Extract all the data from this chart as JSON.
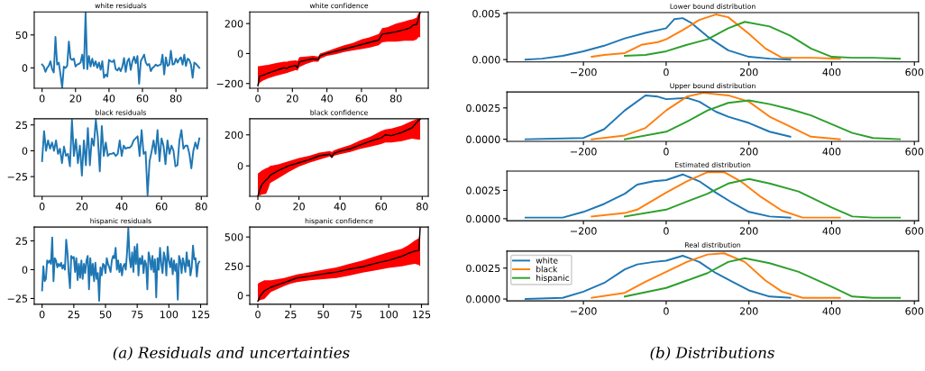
{
  "chart_data": [
    {
      "type": "line",
      "title": "white residuals",
      "annotations": [
        "(a) Residuals and uncertainties"
      ],
      "x": [
        0,
        1,
        2,
        3,
        4,
        5,
        6,
        7,
        8,
        9,
        10,
        11,
        12,
        13,
        14,
        15,
        16,
        17,
        18,
        19,
        20,
        21,
        22,
        23,
        24,
        25,
        26,
        27,
        28,
        29,
        30,
        31,
        32,
        33,
        34,
        35,
        36,
        37,
        38,
        39,
        40,
        41,
        42,
        43,
        44,
        45,
        46,
        47,
        48,
        49,
        50,
        51,
        52,
        53,
        54,
        55,
        56,
        57,
        58,
        59,
        60,
        61,
        62,
        63,
        64,
        65,
        66,
        67,
        68,
        69,
        70,
        71,
        72,
        73,
        74,
        75,
        76,
        77,
        78,
        79,
        80,
        81,
        82,
        83,
        84,
        85,
        86,
        87,
        88,
        89,
        90,
        91,
        92,
        93,
        94
      ],
      "series": [
        {
          "color": "#1f77b4",
          "values": [
            5,
            2,
            -6,
            0,
            3,
            10,
            -2,
            -7,
            47,
            5,
            8,
            -10,
            -30,
            2,
            0,
            3,
            40,
            14,
            12,
            14,
            2,
            5,
            6,
            8,
            20,
            -1,
            84,
            -2,
            18,
            2,
            14,
            3,
            10,
            0,
            8,
            -3,
            10,
            -15,
            -10,
            -13,
            12,
            10,
            9,
            12,
            -2,
            -4,
            0,
            -5,
            2,
            15,
            -6,
            10,
            14,
            -3,
            10,
            17,
            7,
            18,
            -24,
            10,
            15,
            20,
            8,
            4,
            6,
            -5,
            0,
            2,
            5,
            3,
            4,
            5,
            20,
            -10,
            16,
            3,
            5,
            26,
            5,
            6,
            14,
            8,
            13,
            16,
            5,
            20,
            3,
            14,
            12,
            5,
            -15,
            8,
            6,
            3,
            0
          ]
        }
      ],
      "xlim": [
        -4.7,
        98.7
      ],
      "ylim": [
        -31,
        85
      ],
      "xticks": [
        0,
        20,
        40,
        60,
        80
      ],
      "yticks": [
        0,
        50
      ]
    },
    {
      "type": "line",
      "title": "white confidence",
      "series": [
        {
          "color": "#000000",
          "x": [
            0,
            1,
            3,
            6,
            10,
            15,
            17,
            18,
            22,
            23,
            24,
            28,
            32,
            35,
            36,
            40,
            45,
            50,
            55,
            60,
            65,
            70,
            72,
            75,
            80,
            85,
            88,
            90,
            92,
            93,
            94
          ],
          "values": [
            -215,
            -150,
            -145,
            -130,
            -115,
            -95,
            -100,
            -90,
            -80,
            -95,
            -55,
            -45,
            -35,
            -40,
            -15,
            0,
            15,
            30,
            45,
            60,
            75,
            90,
            130,
            135,
            145,
            160,
            170,
            190,
            195,
            230,
            275
          ],
          "lower": [
            -225,
            -195,
            -180,
            -165,
            -150,
            -135,
            -130,
            -125,
            -110,
            -115,
            -90,
            -70,
            -55,
            -55,
            -35,
            -15,
            -5,
            10,
            20,
            30,
            40,
            55,
            75,
            80,
            80,
            85,
            85,
            85,
            95,
            110,
            110
          ],
          "upper": [
            -85,
            -85,
            -80,
            -75,
            -65,
            -55,
            -55,
            -50,
            -45,
            -50,
            -25,
            -20,
            -15,
            -20,
            0,
            15,
            35,
            55,
            70,
            95,
            110,
            130,
            170,
            175,
            200,
            215,
            225,
            230,
            240,
            270,
            275
          ]
        }
      ],
      "xlim": [
        -4.7,
        98.7
      ],
      "ylim": [
        -232,
        278
      ],
      "xticks": [
        0,
        20,
        40,
        60,
        80
      ],
      "yticks": [
        -200,
        0,
        200
      ]
    },
    {
      "type": "line",
      "title": "black residuals",
      "x": [
        0,
        1,
        2,
        3,
        4,
        5,
        6,
        7,
        8,
        9,
        10,
        11,
        12,
        13,
        14,
        15,
        16,
        17,
        18,
        19,
        20,
        21,
        22,
        23,
        24,
        25,
        26,
        27,
        28,
        29,
        30,
        31,
        32,
        33,
        34,
        35,
        36,
        37,
        38,
        39,
        40,
        41,
        42,
        43,
        44,
        45,
        46,
        47,
        48,
        49,
        50,
        51,
        52,
        53,
        54,
        55,
        56,
        57,
        58,
        59,
        60,
        61,
        62,
        63,
        64,
        65,
        66,
        67,
        68,
        69,
        70,
        71,
        72,
        73,
        74,
        75,
        76,
        77,
        78,
        79
      ],
      "series": [
        {
          "color": "#1f77b4",
          "values": [
            -10,
            19,
            0,
            10,
            2,
            8,
            0,
            10,
            -3,
            2,
            -12,
            4,
            -5,
            -3,
            -15,
            30,
            -5,
            11,
            -12,
            5,
            -24,
            10,
            -14,
            22,
            -14,
            12,
            5,
            30,
            13,
            -20,
            24,
            -5,
            8,
            -5,
            -3,
            -3,
            -2,
            -5,
            -3,
            10,
            -5,
            5,
            2,
            3,
            3,
            5,
            10,
            12,
            14,
            -5,
            20,
            -3,
            -1,
            -43,
            -10,
            -1,
            10,
            -3,
            20,
            -10,
            12,
            5,
            -13,
            10,
            -3,
            5,
            0,
            -15,
            -14,
            10,
            20,
            2,
            5,
            5,
            -3,
            -17,
            0,
            8,
            2,
            12
          ]
        }
      ],
      "xlim": [
        -3.95,
        82.95
      ],
      "ylim": [
        -44,
        31
      ],
      "xticks": [
        0,
        20,
        40,
        60,
        80
      ],
      "yticks": [
        -25,
        0,
        25
      ]
    },
    {
      "type": "line",
      "title": "black confidence",
      "series": [
        {
          "color": "#000000",
          "x": [
            0,
            1,
            2,
            4,
            5,
            6,
            10,
            15,
            20,
            25,
            30,
            35,
            36,
            37,
            40,
            45,
            50,
            55,
            60,
            62,
            65,
            70,
            75,
            78,
            79
          ],
          "values": [
            -195,
            -150,
            -120,
            -90,
            -80,
            -60,
            -30,
            0,
            20,
            40,
            65,
            75,
            55,
            80,
            95,
            110,
            135,
            160,
            180,
            200,
            195,
            215,
            245,
            290,
            300
          ],
          "lower": [
            -196,
            -190,
            -185,
            -180,
            -150,
            -110,
            -80,
            -40,
            -5,
            20,
            40,
            60,
            50,
            65,
            75,
            90,
            110,
            125,
            140,
            150,
            150,
            160,
            175,
            170,
            170
          ],
          "upper": [
            -50,
            -40,
            -30,
            -15,
            -10,
            0,
            10,
            30,
            50,
            65,
            85,
            95,
            90,
            100,
            115,
            135,
            165,
            190,
            225,
            235,
            240,
            260,
            290,
            304,
            304
          ]
        }
      ],
      "xlim": [
        -3.95,
        82.95
      ],
      "ylim": [
        -196,
        304
      ],
      "xticks": [
        0,
        20,
        40,
        60,
        80
      ],
      "yticks": [
        0,
        200
      ]
    },
    {
      "type": "line",
      "title": "hispanic residuals",
      "x": [
        0,
        1,
        2,
        3,
        4,
        5,
        6,
        7,
        8,
        9,
        10,
        11,
        12,
        13,
        14,
        15,
        16,
        17,
        18,
        19,
        20,
        21,
        22,
        23,
        24,
        25,
        26,
        27,
        28,
        29,
        30,
        31,
        32,
        33,
        34,
        35,
        36,
        37,
        38,
        39,
        40,
        41,
        42,
        43,
        44,
        45,
        46,
        47,
        48,
        49,
        50,
        51,
        52,
        53,
        54,
        55,
        56,
        57,
        58,
        59,
        60,
        61,
        62,
        63,
        64,
        65,
        66,
        67,
        68,
        69,
        70,
        71,
        72,
        73,
        74,
        75,
        76,
        77,
        78,
        79,
        80,
        81,
        82,
        83,
        84,
        85,
        86,
        87,
        88,
        89,
        90,
        91,
        92,
        93,
        94,
        95,
        96,
        97,
        98,
        99,
        100,
        101,
        102,
        103,
        104,
        105,
        106,
        107,
        108,
        109,
        110,
        111,
        112,
        113,
        114,
        115,
        116,
        117,
        118,
        119,
        120,
        121,
        122,
        123,
        124
      ],
      "series": [
        {
          "color": "#1f77b4",
          "values": [
            -18,
            3,
            -10,
            -8,
            8,
            6,
            8,
            5,
            28,
            -10,
            10,
            8,
            2,
            5,
            3,
            6,
            1,
            4,
            0,
            26,
            15,
            -3,
            -16,
            12,
            10,
            11,
            -2,
            10,
            -9,
            5,
            -7,
            8,
            -8,
            5,
            -3,
            8,
            12,
            -17,
            10,
            -5,
            5,
            -10,
            6,
            -8,
            -3,
            -27,
            2,
            -5,
            5,
            4,
            -3,
            10,
            5,
            2,
            -2,
            8,
            12,
            10,
            19,
            0,
            8,
            -2,
            5,
            -5,
            3,
            5,
            0,
            15,
            36,
            10,
            2,
            15,
            -2,
            20,
            5,
            22,
            -5,
            10,
            5,
            12,
            -3,
            8,
            5,
            -17,
            15,
            10,
            0,
            12,
            -2,
            9,
            -24,
            10,
            0,
            19,
            5,
            -3,
            15,
            10,
            -5,
            20,
            8,
            2,
            10,
            -4,
            8,
            -1,
            5,
            -26,
            12,
            8,
            -3,
            10,
            5,
            -2,
            15,
            3,
            8,
            -5,
            2,
            21,
            9,
            10,
            -6,
            5,
            7
          ]
        }
      ],
      "xlim": [
        -6.2,
        130.2
      ],
      "ylim": [
        -30,
        37
      ],
      "xticks": [
        0,
        25,
        50,
        75,
        100,
        125
      ],
      "yticks": [
        -25,
        0,
        25
      ]
    },
    {
      "type": "line",
      "title": "hispanic confidence",
      "series": [
        {
          "color": "#000000",
          "x": [
            0,
            2,
            5,
            10,
            15,
            20,
            25,
            30,
            40,
            50,
            60,
            70,
            80,
            90,
            100,
            110,
            115,
            120,
            123,
            124
          ],
          "values": [
            -50,
            0,
            40,
            70,
            90,
            110,
            130,
            150,
            165,
            185,
            200,
            225,
            245,
            275,
            300,
            335,
            360,
            380,
            385,
            580
          ],
          "lower": [
            -50,
            -40,
            -30,
            30,
            55,
            80,
            100,
            115,
            130,
            140,
            150,
            170,
            195,
            215,
            235,
            250,
            260,
            270,
            260,
            250
          ],
          "upper": [
            100,
            115,
            130,
            130,
            140,
            150,
            165,
            180,
            200,
            220,
            240,
            270,
            300,
            335,
            370,
            400,
            430,
            470,
            490,
            585
          ]
        }
      ],
      "xlim": [
        -6.2,
        130.2
      ],
      "ylim": [
        -75,
        585
      ],
      "xticks": [
        0,
        25,
        50,
        75,
        100,
        125
      ],
      "yticks": [
        0,
        250,
        500
      ]
    },
    {
      "type": "line",
      "title": "Lower bound distribution",
      "annotations": [
        "(b) Distributions"
      ],
      "series": [
        {
          "color": "#1f77b4",
          "x": [
            -340,
            -300,
            -250,
            -200,
            -150,
            -100,
            -50,
            0,
            20,
            40,
            60,
            100,
            150,
            200,
            250,
            300
          ],
          "values": [
            0,
            0.0001,
            0.0004,
            0.0009,
            0.0015,
            0.0023,
            0.0029,
            0.0034,
            0.0044,
            0.0045,
            0.004,
            0.0025,
            0.001,
            0.0003,
            0.0001,
            0
          ]
        },
        {
          "color": "#ff7f0e",
          "x": [
            -180,
            -150,
            -100,
            -60,
            -20,
            0,
            40,
            80,
            120,
            150,
            200,
            240,
            280,
            350,
            420
          ],
          "values": [
            0.0003,
            0.0005,
            0.0007,
            0.0016,
            0.0019,
            0.0022,
            0.0032,
            0.0043,
            0.0049,
            0.0046,
            0.0028,
            0.0012,
            0.0002,
            0.0002,
            0.0001
          ]
        },
        {
          "color": "#2ca02c",
          "x": [
            -100,
            -50,
            0,
            50,
            100,
            150,
            190,
            250,
            300,
            350,
            400,
            450,
            500,
            565
          ],
          "values": [
            0.0004,
            0.0005,
            0.0009,
            0.0016,
            0.0022,
            0.0034,
            0.0041,
            0.0036,
            0.0026,
            0.0012,
            0.0003,
            0.0002,
            0.0002,
            0.0001
          ]
        }
      ],
      "xlim": [
        -385,
        610
      ],
      "ylim": [
        -0.00026,
        0.0051
      ],
      "xticks": [
        -200,
        0,
        200,
        400,
        600
      ],
      "yticks": [
        {
          "value": 0,
          "label": "0.000"
        },
        {
          "value": 0.005,
          "label": "0.005"
        }
      ]
    },
    {
      "type": "line",
      "title": "Upper bound distribution",
      "series": [
        {
          "color": "#1f77b4",
          "x": [
            -340,
            -200,
            -150,
            -100,
            -50,
            -20,
            0,
            50,
            80,
            120,
            150,
            200,
            250,
            300
          ],
          "values": [
            0,
            0.0001,
            0.0008,
            0.0023,
            0.0035,
            0.0034,
            0.0032,
            0.0033,
            0.003,
            0.0022,
            0.0018,
            0.0013,
            0.0006,
            0.0002
          ]
        },
        {
          "color": "#ff7f0e",
          "x": [
            -180,
            -100,
            -50,
            0,
            50,
            90,
            150,
            200,
            250,
            300,
            350,
            420
          ],
          "values": [
            0,
            0.0003,
            0.0009,
            0.0023,
            0.0034,
            0.0037,
            0.0035,
            0.003,
            0.0018,
            0.001,
            0.0002,
            0
          ]
        },
        {
          "color": "#2ca02c",
          "x": [
            -100,
            0,
            50,
            100,
            150,
            200,
            250,
            300,
            350,
            400,
            450,
            500,
            565
          ],
          "values": [
            0,
            0.0006,
            0.0014,
            0.0023,
            0.0029,
            0.0031,
            0.0028,
            0.0024,
            0.0019,
            0.0012,
            0.0005,
            0.0001,
            0
          ]
        }
      ],
      "xlim": [
        -385,
        610
      ],
      "ylim": [
        -0.00017,
        0.00377
      ],
      "xticks": [
        -200,
        0,
        200,
        400,
        600
      ],
      "yticks": [
        {
          "value": 0,
          "label": "0.0000"
        },
        {
          "value": 0.0025,
          "label": "0.0025"
        }
      ]
    },
    {
      "type": "line",
      "title": "Estimated distribution",
      "series": [
        {
          "color": "#1f77b4",
          "x": [
            -340,
            -250,
            -200,
            -150,
            -100,
            -70,
            -30,
            0,
            40,
            80,
            120,
            160,
            200,
            250,
            300
          ],
          "values": [
            0.0001,
            0.0001,
            0.0006,
            0.0013,
            0.0022,
            0.003,
            0.0033,
            0.0034,
            0.0039,
            0.0033,
            0.0023,
            0.0014,
            0.0006,
            0.0002,
            0.0001
          ]
        },
        {
          "color": "#ff7f0e",
          "x": [
            -180,
            -100,
            -70,
            0,
            50,
            100,
            140,
            180,
            230,
            280,
            330,
            420
          ],
          "values": [
            0.0002,
            0.0005,
            0.0008,
            0.0023,
            0.0033,
            0.0041,
            0.0041,
            0.0033,
            0.0019,
            0.0007,
            0.0001,
            0.0001
          ]
        },
        {
          "color": "#2ca02c",
          "x": [
            -100,
            0,
            50,
            100,
            150,
            200,
            250,
            320,
            400,
            450,
            500,
            565
          ],
          "values": [
            0.0002,
            0.0008,
            0.0015,
            0.0022,
            0.0031,
            0.0035,
            0.0031,
            0.0024,
            0.001,
            0.0002,
            0.0001,
            0.0001
          ]
        }
      ],
      "xlim": [
        -385,
        610
      ],
      "ylim": [
        -0.00018,
        0.0042
      ],
      "xticks": [
        -200,
        0,
        200,
        400,
        600
      ],
      "yticks": [
        {
          "value": 0,
          "label": "0.0000"
        },
        {
          "value": 0.0025,
          "label": "0.0025"
        }
      ]
    },
    {
      "type": "line",
      "title": "Real distribution",
      "legend": "top left",
      "series": [
        {
          "name": "white",
          "color": "#1f77b4",
          "x": [
            -340,
            -250,
            -200,
            -150,
            -100,
            -70,
            -30,
            0,
            40,
            80,
            120,
            160,
            200,
            250,
            300
          ],
          "values": [
            0,
            0.0001,
            0.0006,
            0.0013,
            0.0024,
            0.0028,
            0.003,
            0.0031,
            0.0035,
            0.003,
            0.0021,
            0.0014,
            0.0007,
            0.0002,
            0.0001
          ]
        },
        {
          "name": "black",
          "color": "#ff7f0e",
          "x": [
            -180,
            -100,
            -50,
            0,
            50,
            100,
            140,
            190,
            240,
            280,
            330,
            420
          ],
          "values": [
            0.0001,
            0.0005,
            0.0014,
            0.0022,
            0.003,
            0.0036,
            0.0037,
            0.003,
            0.0015,
            0.0006,
            0.0001,
            0.0001
          ]
        },
        {
          "name": "hispanic",
          "color": "#2ca02c",
          "x": [
            -100,
            0,
            50,
            100,
            150,
            190,
            250,
            320,
            400,
            450,
            500,
            565
          ],
          "values": [
            0.0002,
            0.0009,
            0.0015,
            0.0021,
            0.003,
            0.0033,
            0.0029,
            0.0022,
            0.001,
            0.0002,
            0.0001,
            0.0001
          ]
        }
      ],
      "xlim": [
        -385,
        610
      ],
      "ylim": [
        -0.00015,
        0.00387
      ],
      "xticks": [
        -200,
        0,
        200,
        400,
        600
      ],
      "yticks": [
        {
          "value": 0,
          "label": "0.0000"
        },
        {
          "value": 0.0025,
          "label": "0.0025"
        }
      ]
    }
  ]
}
